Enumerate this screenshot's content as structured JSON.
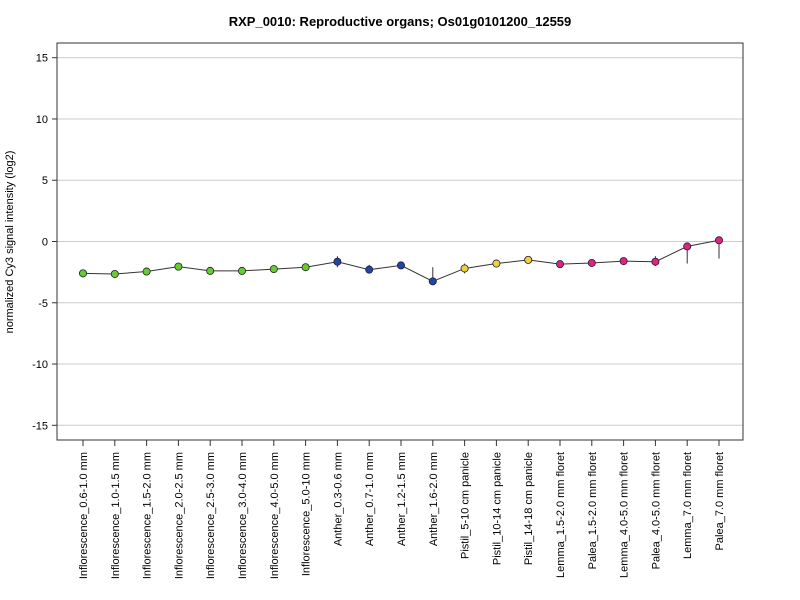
{
  "chart_data": {
    "type": "line",
    "title": "RXP_0010: Reproductive organs; Os01g0101200_12559",
    "xlabel": "",
    "ylabel": "normalized Cy3 signal intensity (log2)",
    "ylim": [
      -16.2,
      16.2
    ],
    "yticks": [
      15,
      10,
      5,
      0,
      -5,
      -10,
      -15
    ],
    "grid": true,
    "categories": [
      "Inflorescence_0.6-1.0 mm",
      "Inflorescence_1.0-1.5 mm",
      "Inflorescence_1.5-2.0 mm",
      "Inflorescence_2.0-2.5 mm",
      "Inflorescence_2.5-3.0 mm",
      "Inflorescence_3.0-4.0 mm",
      "Inflorescence_4.0-5.0 mm",
      "Inflorescence_5.0-10 mm",
      "Anther_0.3-0.6 mm",
      "Anther_0.7-1.0 mm",
      "Anther_1.2-1.5 mm",
      "Anther_1.6-2.0 mm",
      "Pistil_5-10 cm panicle",
      "Pistil_10-14 cm panicle",
      "Pistil_14-18 cm panicle",
      "Lemma_1.5-2.0 mm floret",
      "Palea_1.5-2.0 mm floret",
      "Lemma_4.0-5.0 mm floret",
      "Palea_4.0-5.0 mm floret",
      "Lemma_7.0 mm floret",
      "Palea_7.0 mm floret"
    ],
    "values": [
      -2.6,
      -2.65,
      -2.45,
      -2.05,
      -2.4,
      -2.4,
      -2.25,
      -2.1,
      -1.65,
      -2.3,
      -1.95,
      -3.25,
      -2.2,
      -1.8,
      -1.5,
      -1.85,
      -1.75,
      -1.6,
      -1.65,
      -0.4,
      0.1
    ],
    "err_low": [
      -2.75,
      -2.8,
      -2.6,
      -2.15,
      -2.55,
      -2.55,
      -2.4,
      -2.25,
      -2.1,
      -2.5,
      -2.1,
      -3.45,
      -2.6,
      -1.95,
      -1.6,
      -2.1,
      -1.95,
      -1.8,
      -2.0,
      -1.8,
      -1.4
    ],
    "err_high": [
      -2.45,
      -2.5,
      -2.3,
      -1.95,
      -2.25,
      -2.25,
      -2.1,
      -1.95,
      -1.2,
      -1.9,
      -1.8,
      -2.1,
      -1.8,
      -1.65,
      -1.35,
      -1.6,
      -1.55,
      -1.3,
      -1.2,
      -0.2,
      0.25
    ],
    "colors": [
      "#66cc33",
      "#66cc33",
      "#66cc33",
      "#66cc33",
      "#66cc33",
      "#66cc33",
      "#66cc33",
      "#66cc33",
      "#2244aa",
      "#2244aa",
      "#2244aa",
      "#2244aa",
      "#f0d040",
      "#f0d040",
      "#f0d040",
      "#dd2288",
      "#dd2288",
      "#dd2288",
      "#dd2288",
      "#dd2288",
      "#dd2288"
    ]
  }
}
